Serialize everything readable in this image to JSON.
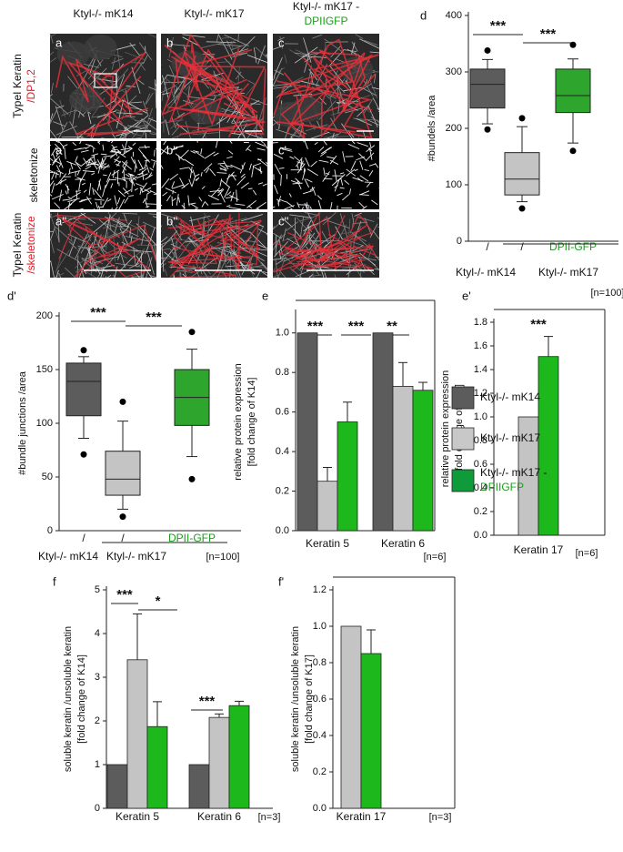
{
  "images": {
    "columns": [
      {
        "text": "Ktyl-/- mK14"
      },
      {
        "text": "Ktyl-/- mK17"
      },
      {
        "text": "Ktyl-/- mK17 -",
        "text2": "DPIIGFP"
      }
    ],
    "rows": [
      {
        "text": "TypeI Keratin",
        "text2": "/DP1,2"
      },
      {
        "text": "skeletonize"
      },
      {
        "text": "TypeI Keratin",
        "text2": "/skeletonize"
      }
    ],
    "panels": [
      [
        "a",
        "b",
        "c"
      ],
      [
        "a'",
        "b'",
        "c'"
      ],
      [
        "a''",
        "b''",
        "c''"
      ]
    ]
  },
  "legend": [
    {
      "text": "Ktyl-/- mK14",
      "color": "#5c5c5c"
    },
    {
      "text": "Ktyl-/- mK17",
      "color": "#c8c8c8"
    },
    {
      "text": "Ktyl-/- mK17 -",
      "text2": "DPIIGFP",
      "color": "#0f9b3a"
    }
  ],
  "chart_data": [
    {
      "type": "box",
      "label": "d",
      "ylabel": [
        "#bundels /area"
      ],
      "categories": [
        "/",
        "/",
        "DPII-GFP"
      ],
      "groups": [
        "Ktyl-/- mK14",
        "Ktyl-/- mK17"
      ],
      "note": "[n=100]",
      "annotations": [
        "***",
        "***"
      ],
      "ylim": [
        0,
        400
      ],
      "yticks": [
        0,
        100,
        200,
        300,
        400
      ],
      "boxes": [
        {
          "color": "#5c5c5c",
          "whisker_low": 208,
          "q1": 236,
          "median": 278,
          "q3": 305,
          "whisker_high": 322,
          "outliers": [
            198,
            338
          ]
        },
        {
          "color": "#c4c4c4",
          "whisker_low": 70,
          "q1": 82,
          "median": 110,
          "q3": 157,
          "whisker_high": 203,
          "outliers": [
            58,
            218
          ]
        },
        {
          "color": "#2ea62e",
          "whisker_low": 174,
          "q1": 228,
          "median": 258,
          "q3": 305,
          "whisker_high": 323,
          "outliers": [
            160,
            348
          ]
        }
      ]
    },
    {
      "type": "box",
      "label": "d'",
      "ylabel": [
        "#bundle junctions /area"
      ],
      "categories": [
        "/",
        "/",
        "DPII-GFP"
      ],
      "groups": [
        "Ktyl-/- mK14",
        "Ktyl-/- mK17"
      ],
      "note": "[n=100]",
      "annotations": [
        "***",
        "***"
      ],
      "ylim": [
        0,
        200
      ],
      "yticks": [
        0,
        50,
        100,
        150,
        200
      ],
      "boxes": [
        {
          "color": "#5c5c5c",
          "whisker_low": 86,
          "q1": 107,
          "median": 139,
          "q3": 156,
          "whisker_high": 162,
          "outliers": [
            71,
            168
          ]
        },
        {
          "color": "#c4c4c4",
          "whisker_low": 20,
          "q1": 33,
          "median": 48,
          "q3": 74,
          "whisker_high": 102,
          "outliers": [
            13,
            120
          ]
        },
        {
          "color": "#2ea62e",
          "whisker_low": 69,
          "q1": 98,
          "median": 124,
          "q3": 150,
          "whisker_high": 169,
          "outliers": [
            48,
            185
          ]
        }
      ]
    },
    {
      "type": "bar",
      "label": "e",
      "ylabel": [
        "relative protein expression",
        "[fold change of K14]"
      ],
      "categories": [
        "Keratin 5",
        "Keratin 6"
      ],
      "note": "[n=6]",
      "annotations": [
        "***",
        "***",
        "**"
      ],
      "ylim": [
        0,
        1.1
      ],
      "yticks": [
        {
          "value": 0,
          "label": "0.0"
        },
        {
          "value": 0.2,
          "label": "0.2"
        },
        {
          "value": 0.4,
          "label": "0.4"
        },
        {
          "value": 0.6,
          "label": "0.6"
        },
        {
          "value": 0.8,
          "label": "0.8"
        },
        {
          "value": 1,
          "label": "1.0"
        }
      ],
      "series": [
        {
          "color": "#5c5c5c",
          "values": [
            1,
            1
          ]
        },
        {
          "color": "#c4c4c4",
          "values": [
            0.25,
            0.73
          ],
          "errors": [
            0.07,
            0.12
          ]
        },
        {
          "color": "#1cb81c",
          "values": [
            0.55,
            0.71
          ],
          "errors": [
            0.1,
            0.04
          ]
        }
      ]
    },
    {
      "type": "bar",
      "label": "e'",
      "ylabel": [
        "relative protein expression",
        "[fold change of K17]"
      ],
      "categories": [
        "Keratin 17"
      ],
      "note": "[n=6]",
      "annotations": [
        "***"
      ],
      "ylim": [
        0,
        1.8
      ],
      "yticks": [
        {
          "value": 0,
          "label": "0.0"
        },
        {
          "value": 0.2,
          "label": "0.2"
        },
        {
          "value": 0.4,
          "label": "0.4"
        },
        {
          "value": 0.6,
          "label": "0.6"
        },
        {
          "value": 0.8,
          "label": "0.8"
        },
        {
          "value": 1,
          "label": "1.0"
        },
        {
          "value": 1.2,
          "label": "1.2"
        },
        {
          "value": 1.4,
          "label": "1.4"
        },
        {
          "value": 1.6,
          "label": "1.6"
        },
        {
          "value": 1.8,
          "label": "1.8"
        }
      ],
      "series": [
        {
          "color": "#c4c4c4",
          "values": [
            1
          ]
        },
        {
          "color": "#1cb81c",
          "values": [
            1.51
          ],
          "errors": [
            0.17
          ]
        }
      ]
    },
    {
      "type": "bar",
      "label": "f",
      "ylabel": [
        "soluble keratin /unsoluble keratin",
        "[fold change of K14]"
      ],
      "categories": [
        "Keratin 5",
        "Keratin 6"
      ],
      "note": "[n=3]",
      "annotations": [
        "***",
        "*",
        "***"
      ],
      "ylim": [
        0,
        5
      ],
      "yticks": [
        0,
        1,
        2,
        3,
        4,
        5
      ],
      "series": [
        {
          "color": "#5c5c5c",
          "values": [
            1,
            1
          ]
        },
        {
          "color": "#c4c4c4",
          "values": [
            3.4,
            2.08
          ],
          "errors": [
            1.05,
            0.08
          ]
        },
        {
          "color": "#1cb81c",
          "values": [
            1.87,
            2.35
          ],
          "errors": [
            0.57,
            0.1
          ]
        }
      ]
    },
    {
      "type": "bar",
      "label": "f'",
      "ylabel": [
        "soluble keratin /unsoluble keratin",
        "[fold change of K17]"
      ],
      "categories": [
        "Keratin 17"
      ],
      "note": "[n=3]",
      "annotations": [],
      "ylim": [
        0,
        1.2
      ],
      "yticks": [
        {
          "value": 0,
          "label": "0.0"
        },
        {
          "value": 0.2,
          "label": "0.2"
        },
        {
          "value": 0.4,
          "label": "0.4"
        },
        {
          "value": 0.6,
          "label": "0.6"
        },
        {
          "value": 0.8,
          "label": "0.8"
        },
        {
          "value": 1,
          "label": "1.0"
        },
        {
          "value": 1.2,
          "label": "1.2"
        }
      ],
      "series": [
        {
          "color": "#c4c4c4",
          "values": [
            1
          ]
        },
        {
          "color": "#1cb81c",
          "values": [
            0.85
          ],
          "errors": [
            0.13
          ]
        }
      ]
    }
  ]
}
